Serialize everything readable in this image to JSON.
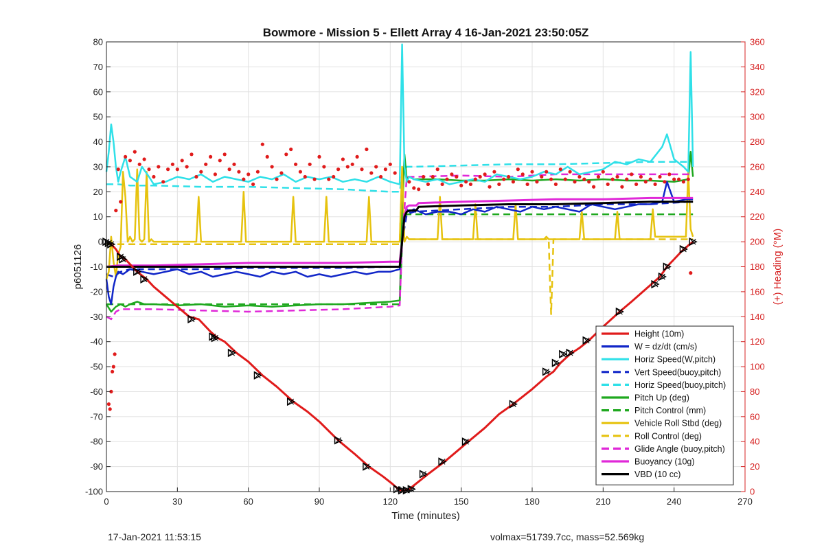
{
  "footer": {
    "timestamp": "17-Jan-2021 11:53:15",
    "stats": "volmax=51739.7cc, mass=52.569kg"
  },
  "chart_data": {
    "type": "line",
    "title": "Bowmore - Mission 5 - Ellett Array 4 16-Jan-2021 23:50:05Z",
    "xlabel": "Time (minutes)",
    "ylabel": "p6051126",
    "y2label": "(+) Heading (°M)",
    "xlim": [
      0,
      270
    ],
    "ylim": [
      -100,
      80
    ],
    "y2lim": [
      0,
      360
    ],
    "x_ticks": [
      0,
      30,
      60,
      90,
      120,
      150,
      180,
      210,
      240,
      270
    ],
    "y_ticks": [
      -100,
      -90,
      -80,
      -70,
      -60,
      -50,
      -40,
      -30,
      -20,
      -10,
      0,
      10,
      20,
      30,
      40,
      50,
      60,
      70,
      80
    ],
    "y2_ticks": [
      0,
      20,
      40,
      60,
      80,
      100,
      120,
      140,
      160,
      180,
      200,
      220,
      240,
      260,
      280,
      300,
      320,
      340,
      360
    ],
    "grid": true,
    "legend_position": "bottom-right",
    "colors": {
      "axis_left": "#222222",
      "axis_right": "#d62222",
      "grid": "#e1e1e1"
    },
    "series": [
      {
        "name": "Height (10m)",
        "color": "#e01b1b",
        "dash": "solid",
        "width": 3,
        "x": [
          0,
          2,
          4,
          6,
          8,
          10,
          13,
          17,
          20,
          25,
          30,
          35,
          39,
          44,
          47,
          50,
          55,
          60,
          66,
          72,
          79,
          85,
          90,
          98,
          105,
          111,
          117,
          121,
          124,
          126,
          128,
          132,
          136,
          143,
          148,
          153,
          160,
          166,
          172,
          180,
          186,
          189,
          192,
          196,
          200,
          204,
          210,
          217,
          222,
          228,
          234,
          237,
          240,
          243,
          246,
          248
        ],
        "y": [
          0,
          -1,
          -3,
          -6,
          -7,
          -9,
          -12,
          -15,
          -18,
          -22,
          -26,
          -30,
          -31,
          -36,
          -38.5,
          -40,
          -44.5,
          -48,
          -53.5,
          -58,
          -64,
          -68,
          -72,
          -79.5,
          -85,
          -90,
          -94,
          -97,
          -99.5,
          -99.5,
          -99,
          -96,
          -93,
          -88,
          -84,
          -80,
          -74.5,
          -69,
          -65,
          -59,
          -54,
          -52,
          -48.5,
          -45,
          -42.5,
          -39.5,
          -34,
          -28,
          -24,
          -19,
          -14,
          -10,
          -7,
          -4,
          -1.5,
          0
        ]
      },
      {
        "name": "W = dz/dt (cm/s)",
        "color": "#1126c8",
        "dash": "solid",
        "width": 2.5,
        "x": [
          0,
          1,
          2,
          3,
          4,
          5,
          7,
          10,
          15,
          20,
          25,
          30,
          35,
          40,
          45,
          50,
          55,
          60,
          65,
          70,
          75,
          80,
          85,
          90,
          95,
          100,
          105,
          110,
          115,
          120,
          124,
          125,
          126,
          127,
          128,
          130,
          135,
          140,
          145,
          150,
          155,
          160,
          165,
          170,
          175,
          180,
          185,
          190,
          195,
          200,
          205,
          210,
          215,
          220,
          225,
          230,
          235,
          237,
          240,
          245,
          248
        ],
        "y": [
          -15,
          -22,
          -25,
          -18,
          -14,
          -12,
          -13,
          -11,
          -12,
          -13,
          -12,
          -11,
          -13,
          -12,
          -14,
          -13,
          -12,
          -13,
          -14,
          -12,
          -13,
          -12,
          -14,
          -13,
          -14,
          -13,
          -12,
          -13,
          -12,
          -12,
          -11,
          0,
          10,
          13,
          12,
          13,
          11,
          12,
          12,
          11,
          13,
          12,
          14,
          13,
          12,
          14,
          13,
          14,
          13,
          12,
          15,
          14,
          13,
          14,
          15,
          15,
          16,
          24,
          16,
          17,
          17
        ]
      },
      {
        "name": "Horiz Speed(W,pitch)",
        "color": "#2fe0e8",
        "dash": "solid",
        "width": 2.5,
        "x": [
          0,
          1,
          2,
          3,
          4,
          5,
          6,
          8,
          10,
          13,
          15,
          18,
          20,
          25,
          30,
          35,
          40,
          45,
          50,
          55,
          60,
          65,
          70,
          75,
          80,
          85,
          90,
          95,
          100,
          105,
          110,
          115,
          120,
          124,
          125,
          126,
          127,
          128,
          130,
          135,
          140,
          145,
          150,
          155,
          160,
          165,
          170,
          175,
          180,
          185,
          190,
          195,
          200,
          205,
          210,
          215,
          220,
          225,
          230,
          235,
          237,
          240,
          244,
          246,
          247,
          248
        ],
        "y": [
          28,
          36,
          47,
          40,
          30,
          24,
          28,
          34,
          26,
          24,
          30,
          26,
          23,
          24,
          26,
          25,
          27,
          24,
          26,
          25,
          24,
          26,
          25,
          27,
          24,
          26,
          25,
          26,
          24,
          25,
          24,
          26,
          24,
          23,
          79,
          30,
          24,
          26,
          25,
          24,
          25,
          23,
          24,
          25,
          24,
          27,
          26,
          25,
          26,
          28,
          27,
          30,
          27,
          28,
          29,
          32,
          31,
          33,
          32,
          38,
          43,
          33,
          30,
          28,
          76,
          30
        ]
      },
      {
        "name": "Vert Speed(buoy,pitch)",
        "color": "#1126c8",
        "dash": "dashed",
        "width": 2.5,
        "x": [
          0,
          3,
          6,
          10,
          20,
          40,
          60,
          80,
          100,
          120,
          124,
          125,
          127,
          130,
          150,
          170,
          190,
          210,
          230,
          246,
          248
        ],
        "y": [
          -13,
          -14,
          -12,
          -11,
          -11,
          -11,
          -10.5,
          -10.5,
          -10.5,
          -10,
          -10,
          0,
          11,
          12,
          13,
          14,
          14,
          15,
          15,
          16,
          16
        ]
      },
      {
        "name": "Horiz Speed(buoy,pitch)",
        "color": "#2fe0e8",
        "dash": "dashed",
        "width": 2.5,
        "x": [
          0,
          5,
          10,
          20,
          40,
          60,
          80,
          100,
          120,
          124,
          125,
          127,
          130,
          150,
          170,
          190,
          210,
          230,
          246,
          248
        ],
        "y": [
          23,
          23,
          22.5,
          22.5,
          22,
          22,
          21.5,
          21,
          20,
          20,
          27,
          30,
          30,
          30.5,
          31,
          31,
          31.5,
          32,
          32,
          32
        ]
      },
      {
        "name": "Pitch Up (deg)",
        "color": "#1fa81f",
        "dash": "solid",
        "width": 2.5,
        "x": [
          0,
          2,
          4,
          6,
          8,
          10,
          13,
          16,
          20,
          30,
          40,
          50,
          60,
          70,
          80,
          90,
          100,
          110,
          120,
          124,
          125,
          126,
          127,
          128,
          130,
          140,
          150,
          160,
          170,
          180,
          190,
          200,
          210,
          220,
          230,
          240,
          246,
          247,
          248
        ],
        "y": [
          -25,
          -28,
          -26,
          -25,
          -26,
          -25,
          -24,
          -25,
          -25,
          -25.5,
          -25,
          -26,
          -25.5,
          -26,
          -25.5,
          -25,
          -25,
          -24.5,
          -24,
          -23.5,
          10,
          35,
          25,
          26,
          25,
          25,
          24.5,
          24.5,
          25,
          24.5,
          25,
          24.5,
          25,
          24.5,
          24.5,
          24,
          25,
          36,
          26
        ]
      },
      {
        "name": "Pitch Control (mm)",
        "color": "#1fa81f",
        "dash": "dashed",
        "width": 2.5,
        "x": [
          0,
          124,
          125.5,
          127,
          236,
          237.5,
          248
        ],
        "y": [
          -25,
          -25,
          11,
          11,
          11,
          11,
          11
        ]
      },
      {
        "name": "Vehicle Roll Stbd (deg)",
        "color": "#e6c20e",
        "dash": "solid",
        "width": 2.5,
        "x": [
          0,
          1,
          2,
          3,
          4,
          5,
          6,
          7,
          8,
          9,
          10,
          11,
          12,
          13,
          14,
          15,
          16,
          17,
          18,
          19,
          20,
          30,
          38,
          39,
          40,
          50,
          57,
          58,
          59,
          70,
          78,
          79,
          80,
          92,
          93,
          94,
          110,
          111,
          112,
          124,
          125,
          126,
          127,
          128,
          140,
          141,
          142,
          155,
          156,
          157,
          172,
          173,
          174,
          185,
          186,
          187,
          200,
          201,
          202,
          215,
          216,
          217,
          230,
          231,
          232,
          245,
          246,
          247,
          248
        ],
        "y": [
          -15,
          -12,
          2,
          -8,
          -14,
          -5,
          -2,
          28,
          18,
          0,
          2,
          0,
          1,
          29,
          1,
          0,
          1,
          28,
          0,
          1,
          0,
          0,
          0,
          18,
          0,
          0,
          0,
          20,
          0,
          0,
          0,
          18,
          0,
          0,
          18,
          0,
          0,
          18,
          0,
          0,
          30,
          0,
          2,
          1,
          1,
          18,
          1,
          1,
          15,
          1,
          1,
          15,
          1,
          1,
          2,
          1,
          1,
          12,
          1,
          1,
          12,
          1,
          1,
          13,
          2,
          2,
          28,
          5,
          2
        ]
      },
      {
        "name": "Roll Control (deg)",
        "color": "#e6c20e",
        "dash": "dashed",
        "width": 2.5,
        "x": [
          0,
          124,
          124.5,
          125.5,
          187,
          187.5,
          188,
          188.5,
          189,
          248
        ],
        "y": [
          -1,
          -1,
          15,
          1,
          1,
          -15,
          -29,
          -15,
          1,
          1
        ]
      },
      {
        "name": "Glide Angle (buoy,pitch)",
        "color": "#e028d8",
        "dash": "dashed",
        "width": 2.5,
        "x": [
          0,
          2,
          4,
          6,
          10,
          20,
          40,
          60,
          80,
          100,
          120,
          124,
          125,
          127,
          130,
          150,
          170,
          190,
          210,
          230,
          246,
          248
        ],
        "y": [
          -30,
          -31,
          -28,
          -27,
          -27,
          -27,
          -27.5,
          -28,
          -27.5,
          -27,
          -26,
          -25.5,
          0,
          26,
          26,
          26.5,
          26,
          27,
          27,
          27,
          27,
          27
        ]
      },
      {
        "name": "Buoyancy (10g)",
        "color": "#e028d8",
        "dash": "solid",
        "width": 3,
        "x": [
          0,
          5,
          10,
          20,
          40,
          60,
          80,
          100,
          120,
          124,
          125,
          126,
          127,
          128,
          131,
          132,
          150,
          170,
          190,
          210,
          230,
          248
        ],
        "y": [
          -10,
          -9.5,
          -9.5,
          -9.5,
          -9,
          -8.5,
          -8.5,
          -8.5,
          -8,
          -8,
          0,
          10,
          14,
          14.5,
          14.5,
          15.5,
          16,
          16.5,
          17,
          17,
          17.5,
          17.5
        ]
      },
      {
        "name": "VBD (10 cc)",
        "color": "#000000",
        "dash": "solid",
        "width": 3,
        "x": [
          0,
          5,
          10,
          20,
          40,
          60,
          80,
          100,
          120,
          124,
          125,
          126,
          127,
          128,
          131,
          132,
          150,
          170,
          190,
          210,
          230,
          248
        ],
        "y": [
          -10,
          -10,
          -10,
          -10,
          -10,
          -10,
          -10,
          -10,
          -10,
          -10,
          0,
          10,
          12,
          12.5,
          12.5,
          14,
          14.5,
          15,
          15,
          15.5,
          16,
          16
        ]
      }
    ],
    "heading_points": {
      "name": "Heading",
      "color": "#e01b1b",
      "axis": "right",
      "x": [
        1,
        1.5,
        2,
        2.5,
        3,
        3.5,
        4,
        5,
        6,
        8,
        10,
        12,
        14,
        16,
        18,
        20,
        22,
        24,
        26,
        28,
        30,
        32,
        34,
        36,
        38,
        40,
        42,
        44,
        46,
        48,
        50,
        52,
        54,
        56,
        58,
        60,
        62,
        64,
        66,
        68,
        70,
        72,
        74,
        76,
        78,
        80,
        82,
        84,
        86,
        88,
        90,
        92,
        94,
        96,
        98,
        100,
        102,
        104,
        106,
        108,
        110,
        112,
        114,
        116,
        118,
        120,
        122,
        128,
        130,
        132,
        134,
        136,
        138,
        140,
        142,
        144,
        146,
        148,
        150,
        152,
        154,
        156,
        158,
        160,
        162,
        164,
        166,
        168,
        170,
        172,
        174,
        176,
        178,
        180,
        182,
        184,
        186,
        188,
        190,
        192,
        194,
        196,
        198,
        200,
        202,
        204,
        206,
        208,
        210,
        212,
        214,
        216,
        218,
        220,
        222,
        224,
        226,
        228,
        230,
        232,
        234,
        236,
        238,
        240,
        242,
        244,
        246,
        247
      ],
      "y": [
        70,
        66,
        80,
        96,
        100,
        110,
        225,
        258,
        232,
        268,
        265,
        272,
        262,
        266,
        258,
        252,
        260,
        248,
        258,
        262,
        258,
        265,
        260,
        270,
        252,
        256,
        262,
        268,
        254,
        265,
        270,
        258,
        262,
        256,
        250,
        254,
        246,
        256,
        278,
        268,
        260,
        250,
        255,
        270,
        274,
        262,
        256,
        252,
        262,
        250,
        268,
        260,
        250,
        252,
        258,
        266,
        260,
        262,
        268,
        258,
        274,
        255,
        260,
        252,
        258,
        262,
        255,
        248,
        243,
        242,
        252,
        246,
        252,
        258,
        246,
        250,
        254,
        252,
        245,
        248,
        246,
        250,
        252,
        254,
        244,
        256,
        246,
        250,
        252,
        248,
        258,
        254,
        246,
        256,
        248,
        252,
        256,
        250,
        246,
        258,
        250,
        256,
        248,
        252,
        250,
        248,
        244,
        252,
        256,
        246,
        250,
        252,
        244,
        250,
        254,
        246,
        252,
        248,
        250,
        246,
        252,
        248,
        254,
        250,
        250,
        248,
        250,
        175
      ]
    },
    "markers": {
      "name": "Height markers",
      "color": "#000000",
      "x": [
        0,
        1,
        2,
        6,
        7,
        13,
        16,
        36,
        45,
        46,
        53,
        64,
        78,
        98,
        110,
        123,
        125,
        127,
        129,
        134,
        142,
        152,
        172,
        186,
        190,
        193,
        196,
        203,
        217,
        232,
        235,
        237,
        244,
        248
      ],
      "y": [
        0,
        -0.5,
        -1,
        -6,
        -7,
        -12,
        -15,
        -31,
        -38,
        -38.5,
        -44.5,
        -53.5,
        -64,
        -79.5,
        -90,
        -99,
        -99.5,
        -99.5,
        -99,
        -93,
        -88,
        -80,
        -65,
        -52,
        -48.5,
        -45,
        -44.5,
        -39.5,
        -28,
        -17,
        -14,
        -10,
        -3,
        0
      ]
    }
  }
}
